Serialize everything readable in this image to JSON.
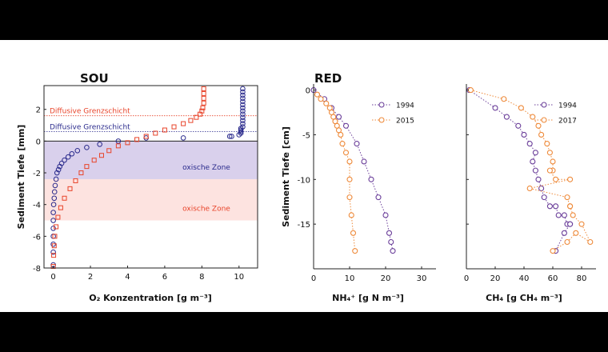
{
  "colors": {
    "blue": "#2a2a8c",
    "red": "#e8442a",
    "purple": "#6b3f9a",
    "orange": "#ee8a3a",
    "blueFill": "#d9d0ec",
    "redFill": "#fde3e0"
  },
  "chart_data": [
    {
      "type": "scatter",
      "title": "SOU",
      "xlabel": "O₂ Konzentration [g m⁻³]",
      "ylabel": "Sediment Tiefe [mm]",
      "xlim": [
        -0.5,
        11
      ],
      "ylim": [
        -8,
        3.5
      ],
      "xticks": [
        "0",
        "2",
        "4",
        "6",
        "8",
        "10"
      ],
      "yticks": [
        "-8",
        "-6",
        "-4",
        "-2",
        "0",
        "2"
      ],
      "annotations": [
        {
          "text": "Diffusive Grenzschicht",
          "y": 1.6,
          "color": "red"
        },
        {
          "text": "Diffusive Grenzschicht",
          "y": 0.6,
          "color": "blue"
        },
        {
          "text": "oxische Zone",
          "y": -1.6,
          "color": "blue"
        },
        {
          "text": "oxische Zone",
          "y": -4.2,
          "color": "red"
        }
      ],
      "bands": [
        {
          "color": "blue",
          "y_from": -2.4,
          "y_to": 0
        },
        {
          "color": "red",
          "y_from": -5.0,
          "y_to": -2.4
        }
      ],
      "series": [
        {
          "color": "blue",
          "x": [
            10.2,
            10.2,
            10.2,
            10.2,
            10.2,
            10.2,
            10.2,
            10.2,
            10.2,
            10.2,
            10.2,
            10.2,
            10.2,
            10.1,
            10.1,
            10.1,
            10.1,
            10.0,
            9.6,
            9.5,
            7.0,
            5.0,
            3.5,
            2.5,
            1.8,
            1.3,
            1.0,
            0.8,
            0.6,
            0.45,
            0.35,
            0.28,
            0.2,
            0.15,
            0.1,
            0.07,
            0.05,
            0.02,
            0.0,
            0.0,
            0.0,
            0.0,
            0.0,
            0.0,
            0.0
          ],
          "y": [
            3.3,
            3.1,
            2.9,
            2.7,
            2.5,
            2.3,
            2.1,
            1.9,
            1.7,
            1.5,
            1.3,
            1.1,
            0.9,
            0.8,
            0.7,
            0.6,
            0.5,
            0.4,
            0.3,
            0.3,
            0.2,
            0.2,
            0.0,
            -0.2,
            -0.4,
            -0.6,
            -0.8,
            -1.0,
            -1.2,
            -1.4,
            -1.6,
            -1.8,
            -2.0,
            -2.4,
            -2.8,
            -3.2,
            -3.6,
            -4.0,
            -4.5,
            -5.0,
            -5.5,
            -6.0,
            -6.5,
            -7.0,
            -7.8
          ]
        },
        {
          "color": "red",
          "x": [
            8.1,
            8.1,
            8.1,
            8.1,
            8.05,
            8.0,
            7.9,
            7.7,
            7.4,
            7.0,
            6.5,
            6.0,
            5.5,
            5.0,
            4.5,
            4.0,
            3.5,
            3.0,
            2.6,
            2.2,
            1.8,
            1.5,
            1.2,
            0.9,
            0.6,
            0.4,
            0.25,
            0.15,
            0.08,
            0.05,
            0.02,
            0.0
          ],
          "y": [
            3.3,
            3.0,
            2.7,
            2.4,
            2.1,
            1.9,
            1.7,
            1.5,
            1.3,
            1.1,
            0.9,
            0.7,
            0.5,
            0.3,
            0.1,
            -0.1,
            -0.3,
            -0.6,
            -0.9,
            -1.2,
            -1.6,
            -2.0,
            -2.5,
            -3.0,
            -3.6,
            -4.2,
            -4.8,
            -5.4,
            -6.0,
            -6.6,
            -7.2,
            -7.9
          ]
        }
      ]
    },
    {
      "type": "line",
      "title": "RED",
      "xlabel": "NH₄⁺ [g N m⁻³]",
      "ylabel": "Sediment Tiefe [cm]",
      "xlim": [
        0,
        34
      ],
      "ylim": [
        -20,
        0.5
      ],
      "xticks": [
        "0",
        "10",
        "20",
        "30"
      ],
      "yticks": [
        "0",
        "-5",
        "-10",
        "-15"
      ],
      "series": [
        {
          "name": "1994",
          "color": "purple",
          "x": [
            0,
            3,
            5,
            7,
            9,
            12,
            14,
            16,
            18,
            20,
            21,
            21.5,
            22
          ],
          "y": [
            0,
            -1,
            -2,
            -3,
            -4,
            -6,
            -8,
            -10,
            -12,
            -14,
            -16,
            -17,
            -18
          ]
        },
        {
          "name": "2015",
          "color": "orange",
          "x": [
            1,
            2,
            3.5,
            4.5,
            5,
            5.5,
            6,
            6.5,
            7,
            7.5,
            8,
            9,
            10,
            10,
            10,
            10.5,
            11,
            11.5
          ],
          "y": [
            -0.5,
            -1,
            -1.5,
            -2,
            -2.5,
            -3,
            -3.5,
            -4,
            -4.5,
            -5,
            -6,
            -7,
            -8,
            -10,
            -12,
            -14,
            -16,
            -18
          ]
        }
      ]
    },
    {
      "type": "line",
      "xlabel": "CH₄ [g CH₄ m⁻³]",
      "xlim": [
        0,
        90
      ],
      "ylim": [
        -20,
        0.5
      ],
      "xticks": [
        "0",
        "20",
        "40",
        "60",
        "80"
      ],
      "series": [
        {
          "name": "1994",
          "color": "purple",
          "x": [
            2,
            20,
            28,
            36,
            40,
            44,
            48,
            46,
            48,
            50,
            52,
            54,
            58,
            62,
            64,
            68,
            70,
            72,
            72,
            68,
            62
          ],
          "y": [
            0,
            -2,
            -3,
            -4,
            -5,
            -6,
            -7,
            -8,
            -9,
            -10,
            -11,
            -12,
            -13,
            -13,
            -14,
            -14,
            -15,
            -15,
            -15,
            -16,
            -18
          ]
        },
        {
          "name": "2017",
          "color": "orange",
          "x": [
            3,
            26,
            38,
            46,
            50,
            52,
            56,
            58,
            60,
            60,
            58,
            62,
            72,
            44,
            70,
            72,
            72,
            74,
            80,
            86,
            76,
            70,
            60
          ],
          "y": [
            0,
            -1,
            -2,
            -3,
            -4,
            -5,
            -6,
            -7,
            -8,
            -9,
            -9,
            -10,
            -10,
            -11,
            -12,
            -13,
            -13,
            -14,
            -15,
            -17,
            -16,
            -17,
            -18
          ]
        }
      ]
    }
  ]
}
